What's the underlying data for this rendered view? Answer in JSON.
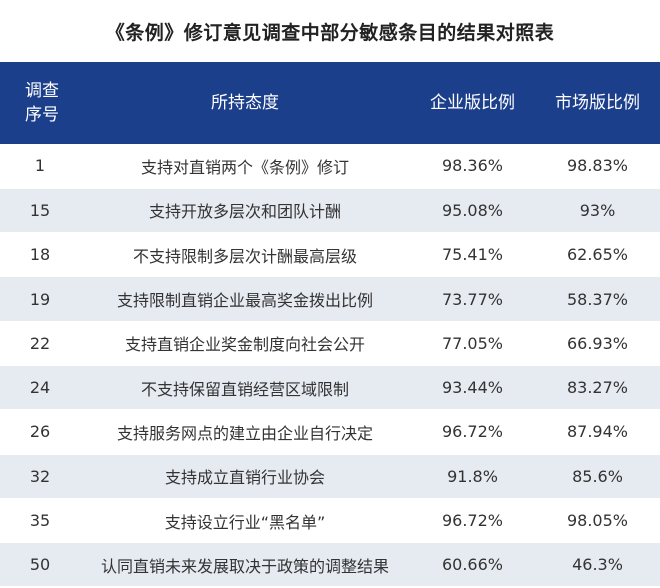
{
  "title": "《条例》修订意见调查中部分敏感条目的结果对照表",
  "table": {
    "headers": {
      "seq_line1": "调查",
      "seq_line2": "序号",
      "attitude": "所持态度",
      "enterprise": "企业版比例",
      "market": "市场版比例"
    },
    "rows": [
      {
        "seq": "1",
        "attitude": "支持对直销两个《条例》修订",
        "enterprise": "98.36%",
        "market": "98.83%"
      },
      {
        "seq": "15",
        "attitude": "支持开放多层次和团队计酬",
        "enterprise": "95.08%",
        "market": "93%"
      },
      {
        "seq": "18",
        "attitude": "不支持限制多层次计酬最高层级",
        "enterprise": "75.41%",
        "market": "62.65%"
      },
      {
        "seq": "19",
        "attitude": "支持限制直销企业最高奖金拨出比例",
        "enterprise": "73.77%",
        "market": "58.37%"
      },
      {
        "seq": "22",
        "attitude": "支持直销企业奖金制度向社会公开",
        "enterprise": "77.05%",
        "market": "66.93%"
      },
      {
        "seq": "24",
        "attitude": "不支持保留直销经营区域限制",
        "enterprise": "93.44%",
        "market": "83.27%"
      },
      {
        "seq": "26",
        "attitude": "支持服务网点的建立由企业自行决定",
        "enterprise": "96.72%",
        "market": "87.94%"
      },
      {
        "seq": "32",
        "attitude": "支持成立直销行业协会",
        "enterprise": "91.8%",
        "market": "85.6%"
      },
      {
        "seq": "35",
        "attitude": "支持设立行业“黑名单”",
        "enterprise": "96.72%",
        "market": "98.05%"
      },
      {
        "seq": "50",
        "attitude": "认同直销未来发展取决于政策的调整结果",
        "enterprise": "60.66%",
        "market": "46.3%"
      }
    ]
  },
  "colors": {
    "header_bg": "#1c3f8c",
    "stripe": "#e6eaf1"
  }
}
